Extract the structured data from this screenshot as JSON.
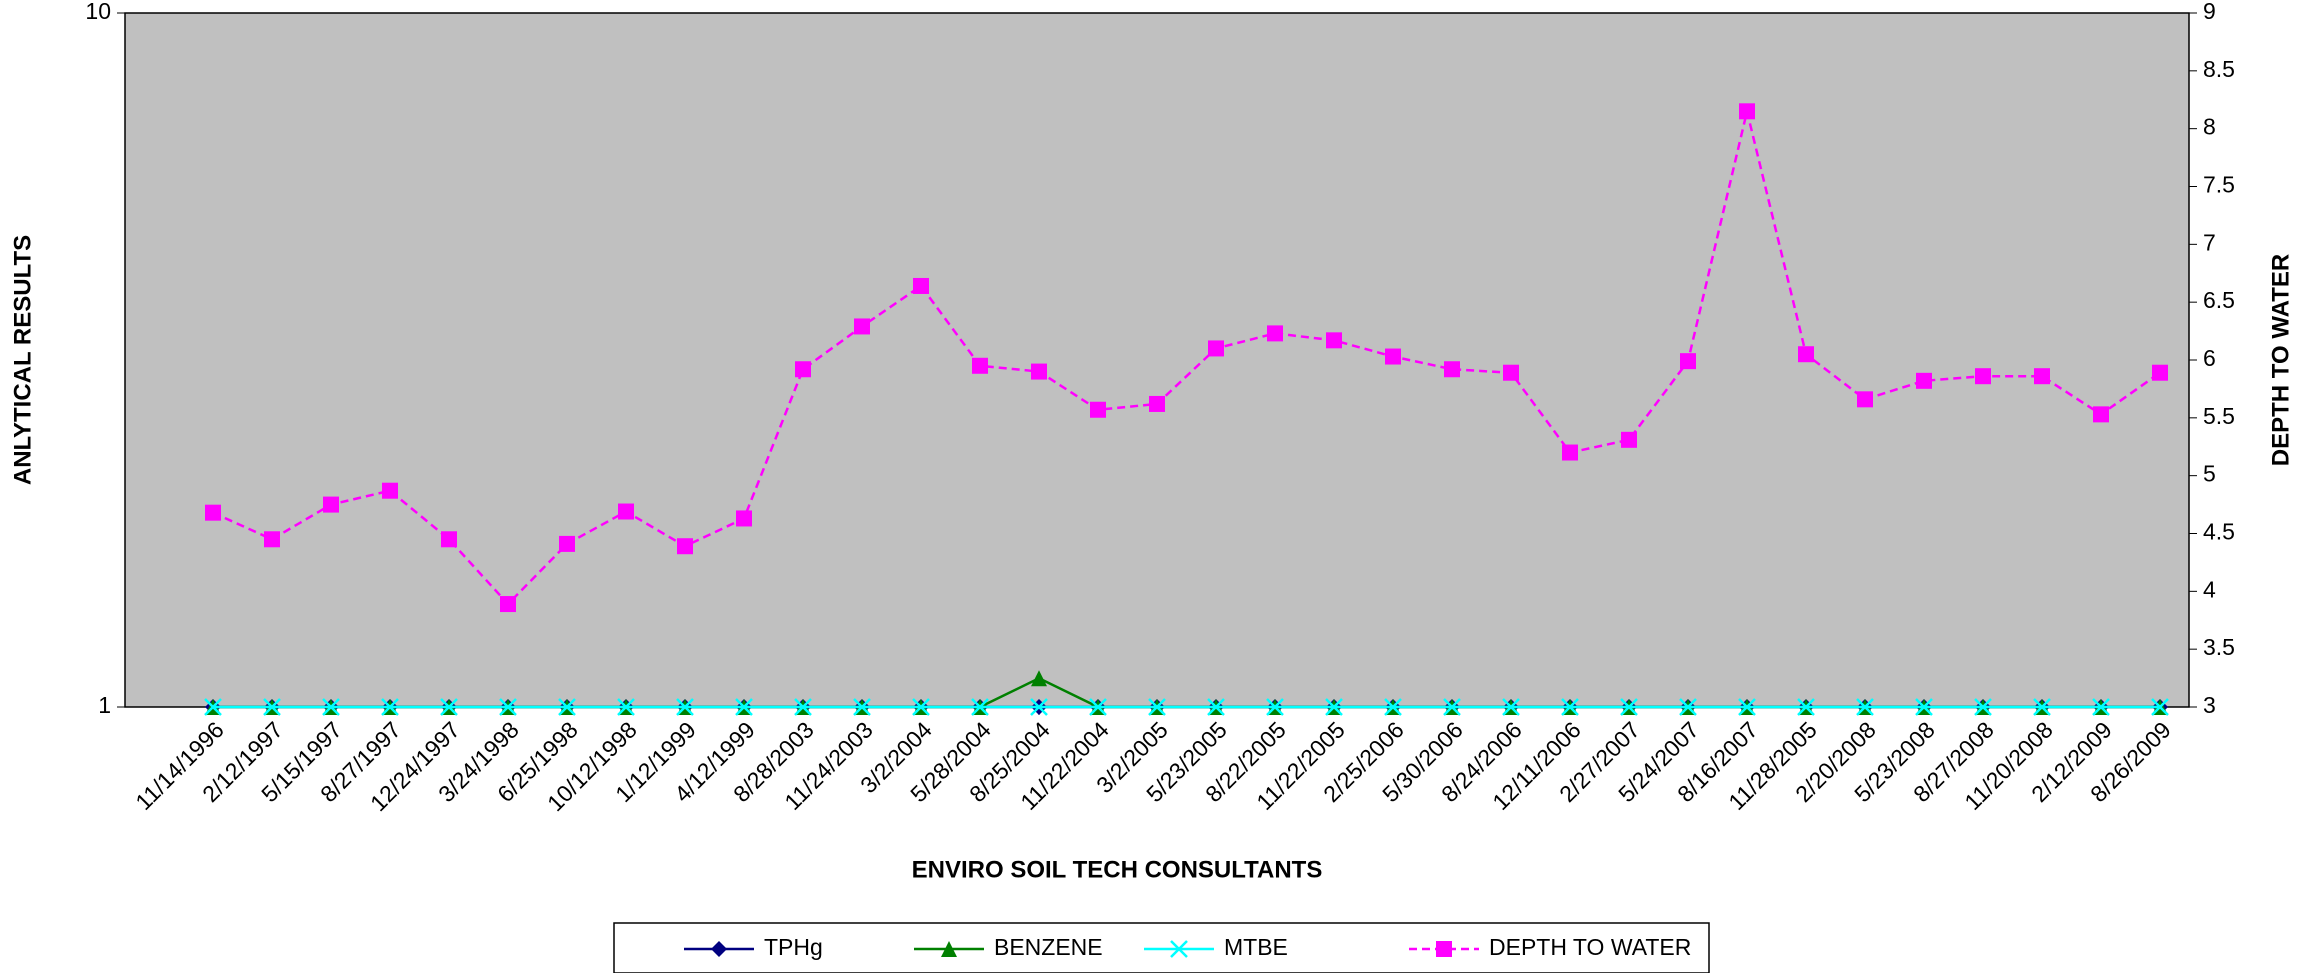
{
  "chart_data": {
    "type": "line",
    "xlabel": "ENVIRO SOIL TECH CONSULTANTS",
    "ylabel": "ANLYTICAL RESULTS",
    "y2label": "DEPTH TO WATER",
    "categories": [
      "11/14/1996",
      "2/12/1997",
      "5/15/1997",
      "8/27/1997",
      "12/24/1997",
      "3/24/1998",
      "6/25/1998",
      "10/12/1998",
      "1/12/1999",
      "4/12/1999",
      "8/28/2003",
      "11/24/2003",
      "3/2/2004",
      "5/28/2004",
      "8/25/2004",
      "11/22/2004",
      "3/2/2005",
      "5/23/2005",
      "8/22/2005",
      "11/22/2005",
      "2/25/2006",
      "5/30/2006",
      "8/24/2006",
      "12/11/2006",
      "2/27/2007",
      "5/24/2007",
      "8/16/2007",
      "11/28/2005",
      "2/20/2008",
      "5/23/2008",
      "8/27/2008",
      "11/20/2008",
      "2/12/2009",
      "8/26/2009"
    ],
    "ylim": [
      1,
      10
    ],
    "yticks": [
      1,
      10
    ],
    "ylog": true,
    "y2lim": [
      3,
      9
    ],
    "y2ticks": [
      3,
      3.5,
      4,
      4.5,
      5,
      5.5,
      6,
      6.5,
      7,
      7.5,
      8,
      8.5,
      9
    ],
    "background": "#c0c0c0",
    "series": [
      {
        "name": "TPHg",
        "color": "#000080",
        "marker": "diamond",
        "values": [
          1,
          1,
          1,
          1,
          1,
          1,
          1,
          1,
          1,
          1,
          1,
          1,
          1,
          1,
          1,
          1,
          1,
          1,
          1,
          1,
          1,
          1,
          1,
          1,
          1,
          1,
          1,
          1,
          1,
          1,
          1,
          1,
          1,
          1
        ]
      },
      {
        "name": "BENZENE",
        "color": "#008000",
        "marker": "triangle",
        "values": [
          1,
          1,
          1,
          1,
          1,
          1,
          1,
          1,
          1,
          1,
          1,
          1,
          1,
          1,
          1.1,
          1,
          1,
          1,
          1,
          1,
          1,
          1,
          1,
          1,
          1,
          1,
          1,
          1,
          1,
          1,
          1,
          1,
          1,
          1
        ]
      },
      {
        "name": "MTBE",
        "color": "#00ffff",
        "marker": "x",
        "values": [
          1,
          1,
          1,
          1,
          1,
          1,
          1,
          1,
          1,
          1,
          1,
          1,
          1,
          1,
          1,
          1,
          1,
          1,
          1,
          1,
          1,
          1,
          1,
          1,
          1,
          1,
          1,
          1,
          1,
          1,
          1,
          1,
          1,
          1
        ]
      },
      {
        "name": "DEPTH TO WATER",
        "color": "#ff00ff",
        "marker": "square",
        "dash": true,
        "axis": "y2",
        "values": [
          4.68,
          4.45,
          4.75,
          4.87,
          4.45,
          3.89,
          4.41,
          4.69,
          4.39,
          4.63,
          5.92,
          6.29,
          6.64,
          5.95,
          5.9,
          5.57,
          5.62,
          6.1,
          6.23,
          6.17,
          6.03,
          5.92,
          5.89,
          5.2,
          5.31,
          5.99,
          8.15,
          6.05,
          5.66,
          5.82,
          5.86,
          5.86,
          5.53,
          5.89
        ]
      }
    ]
  }
}
